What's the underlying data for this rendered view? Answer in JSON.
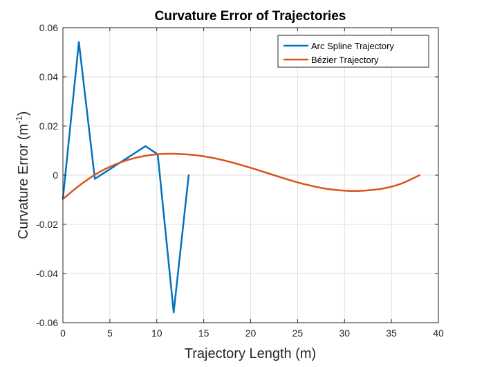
{
  "chart_data": {
    "type": "line",
    "title": "Curvature Error of Trajectories",
    "xlabel": "Trajectory Length (m)",
    "ylabel": {
      "base": "Curvature Error (m",
      "superscript": "-1",
      "suffix": ")"
    },
    "xlim": [
      0,
      40
    ],
    "ylim": [
      -0.06,
      0.06
    ],
    "xticks": [
      0,
      5,
      10,
      15,
      20,
      25,
      30,
      35,
      40
    ],
    "yticks": [
      -0.06,
      -0.04,
      -0.02,
      0,
      0.02,
      0.04,
      0.06
    ],
    "xtick_labels": [
      "0",
      "5",
      "10",
      "15",
      "20",
      "25",
      "30",
      "35",
      "40"
    ],
    "ytick_labels": [
      "-0.06",
      "-0.04",
      "-0.02",
      "0",
      "0.02",
      "0.04",
      "0.06"
    ],
    "grid": true,
    "legend_position": "top-right",
    "series": [
      {
        "name": "Arc Spline Trajectory",
        "color": "#0072BD",
        "x": [
          0,
          1.7,
          3.4,
          8.8,
          10.1,
          11.8,
          13.4
        ],
        "y": [
          -0.0095,
          0.0542,
          -0.0015,
          0.0118,
          0.0085,
          -0.0558,
          0
        ]
      },
      {
        "name": "Bézier Trajectory",
        "color": "#D95319",
        "x": [
          0,
          2,
          4,
          6,
          8,
          10,
          12,
          14,
          16,
          18,
          20,
          22,
          24,
          26,
          28,
          30,
          31,
          32,
          34,
          36,
          38
        ],
        "y": [
          -0.0097,
          -0.0035,
          0.0015,
          0.005,
          0.0073,
          0.0085,
          0.0087,
          0.0082,
          0.007,
          0.0052,
          0.003,
          0.0006,
          -0.0018,
          -0.0039,
          -0.0055,
          -0.0063,
          -0.0064,
          -0.0063,
          -0.0055,
          -0.0035,
          0
        ]
      }
    ]
  }
}
